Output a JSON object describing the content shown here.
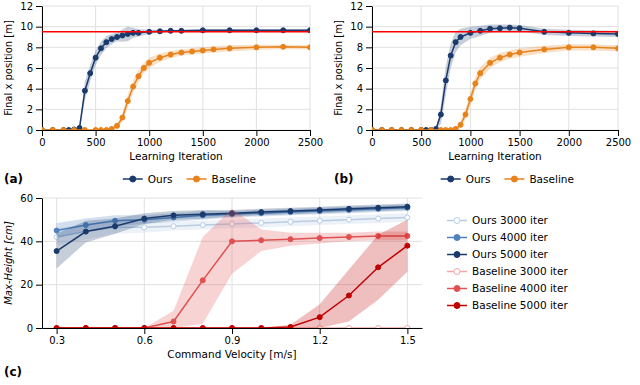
{
  "chart_data": [
    {
      "type": "line",
      "annotations": [
        "(a)"
      ],
      "xlabel": "Learning Iteration",
      "ylabel": "Final x position [m]",
      "xlim": [
        0,
        2500
      ],
      "xticks": [
        0,
        500,
        1000,
        1500,
        2000,
        2500
      ],
      "ylim": [
        0,
        12
      ],
      "yticks": [
        0,
        2,
        4,
        6,
        8,
        10,
        12
      ],
      "grid": true,
      "legend": "below",
      "ref_line": {
        "value": 9.5,
        "color": "red"
      },
      "series": [
        {
          "name": "Ours",
          "color": "#1a3a6b",
          "marker": "circle",
          "x": [
            0,
            100,
            200,
            250,
            300,
            350,
            400,
            450,
            500,
            550,
            600,
            650,
            700,
            750,
            800,
            850,
            900,
            1000,
            1100,
            1200,
            1300,
            1500,
            1750,
            2000,
            2250,
            2500
          ],
          "values": [
            0,
            0,
            0,
            0,
            0.05,
            0.2,
            3.8,
            5.5,
            7.0,
            7.9,
            8.5,
            8.8,
            9.0,
            9.15,
            9.3,
            9.4,
            9.4,
            9.5,
            9.55,
            9.6,
            9.6,
            9.65,
            9.65,
            9.65,
            9.65,
            9.65
          ],
          "std": [
            0,
            0,
            0,
            0,
            0.05,
            0.15,
            0.9,
            0.8,
            0.7,
            0.65,
            0.6,
            0.5,
            0.4,
            0.6,
            0.7,
            0.5,
            0.35,
            0.2,
            0.15,
            0.1,
            0.1,
            0.1,
            0.1,
            0.1,
            0.1,
            0.1
          ]
        },
        {
          "name": "Baseline",
          "color": "#e8821a",
          "marker": "circle",
          "x": [
            0,
            100,
            200,
            300,
            400,
            500,
            550,
            600,
            650,
            700,
            750,
            800,
            850,
            900,
            950,
            1000,
            1100,
            1200,
            1300,
            1400,
            1500,
            1600,
            1750,
            2000,
            2250,
            2500
          ],
          "values": [
            0,
            0,
            0,
            0,
            0,
            0,
            0,
            0,
            0.1,
            0.4,
            1.2,
            2.8,
            4.2,
            5.2,
            6.0,
            6.5,
            7.0,
            7.3,
            7.5,
            7.6,
            7.7,
            7.8,
            7.9,
            8.0,
            8.05,
            8.0
          ],
          "std": [
            0,
            0,
            0,
            0,
            0,
            0,
            0,
            0,
            0.1,
            0.2,
            0.4,
            0.6,
            0.6,
            0.6,
            0.5,
            0.5,
            0.4,
            0.35,
            0.3,
            0.3,
            0.3,
            0.3,
            0.3,
            0.25,
            0.2,
            0.2
          ]
        }
      ]
    },
    {
      "type": "line",
      "annotations": [
        "(b)"
      ],
      "xlabel": "Learning Iteration",
      "ylabel": "Final x position [m]",
      "xlim": [
        0,
        2500
      ],
      "xticks": [
        0,
        500,
        1000,
        1500,
        2000,
        2500
      ],
      "ylim": [
        0,
        12
      ],
      "yticks": [
        0,
        2,
        4,
        6,
        8,
        10,
        12
      ],
      "grid": true,
      "legend": "below",
      "ref_line": {
        "value": 9.5,
        "color": "red"
      },
      "series": [
        {
          "name": "Ours",
          "color": "#1a3a6b",
          "marker": "circle",
          "x": [
            0,
            100,
            200,
            300,
            400,
            500,
            550,
            600,
            650,
            700,
            750,
            800,
            850,
            900,
            1000,
            1100,
            1200,
            1300,
            1400,
            1500,
            1750,
            2000,
            2250,
            2500
          ],
          "values": [
            0,
            0,
            0,
            0,
            0,
            0,
            0,
            0,
            0.1,
            1.5,
            4.8,
            7.2,
            8.5,
            9.0,
            9.4,
            9.6,
            9.8,
            9.85,
            9.9,
            9.85,
            9.5,
            9.4,
            9.35,
            9.3
          ],
          "std": [
            0,
            0,
            0,
            0,
            0,
            0,
            0,
            0,
            0.1,
            0.9,
            1.4,
            1.2,
            1.0,
            0.8,
            0.6,
            0.5,
            0.4,
            0.35,
            0.3,
            0.3,
            0.3,
            0.3,
            0.3,
            0.3
          ]
        },
        {
          "name": "Baseline",
          "color": "#e8821a",
          "marker": "circle",
          "x": [
            0,
            100,
            200,
            300,
            400,
            500,
            600,
            700,
            750,
            800,
            850,
            900,
            950,
            1000,
            1050,
            1100,
            1200,
            1300,
            1400,
            1500,
            1750,
            2000,
            2250,
            2500
          ],
          "values": [
            0,
            0,
            0,
            0,
            0,
            0,
            0,
            0,
            0,
            0,
            0.1,
            0.5,
            1.5,
            3.0,
            4.5,
            5.5,
            6.5,
            7.0,
            7.3,
            7.5,
            7.8,
            8.0,
            8.0,
            7.9
          ],
          "std": [
            0,
            0,
            0,
            0,
            0,
            0,
            0,
            0,
            0,
            0,
            0.1,
            0.3,
            0.5,
            0.6,
            0.6,
            0.6,
            0.5,
            0.45,
            0.4,
            0.4,
            0.35,
            0.3,
            0.3,
            0.3
          ]
        }
      ]
    },
    {
      "type": "line",
      "annotations": [
        "(c)"
      ],
      "xlabel": "Command Velocity [m/s]",
      "ylabel": "Max-Height [cm]",
      "xlim": [
        0.25,
        1.55
      ],
      "xticks": [
        0.3,
        0.6,
        0.9,
        1.2,
        1.5
      ],
      "ylim": [
        0,
        60
      ],
      "yticks": [
        0,
        20,
        40,
        60
      ],
      "grid": true,
      "legend": "right",
      "x": [
        0.3,
        0.4,
        0.5,
        0.6,
        0.7,
        0.8,
        0.9,
        1.0,
        1.1,
        1.2,
        1.3,
        1.4,
        1.5
      ],
      "series": [
        {
          "name": "Ours 3000 iter",
          "color": "#b8cce4",
          "marker": "open-circle",
          "values": [
            42.0,
            44.5,
            46.5,
            46.5,
            47.0,
            47.5,
            48.0,
            48.5,
            49.0,
            49.5,
            50.0,
            50.5,
            51.0
          ],
          "std": [
            4.0,
            3.5,
            3.0,
            2.5,
            2.0,
            2.0,
            2.0,
            2.0,
            2.0,
            2.0,
            2.0,
            2.0,
            2.0
          ]
        },
        {
          "name": "Ours 4000 iter",
          "color": "#4f81bd",
          "marker": "circle",
          "values": [
            45.0,
            47.5,
            49.5,
            50.0,
            51.0,
            52.0,
            52.5,
            53.0,
            53.5,
            54.0,
            54.5,
            55.0,
            55.5
          ],
          "std": [
            3.5,
            3.0,
            2.5,
            2.0,
            2.0,
            2.0,
            1.5,
            1.5,
            1.5,
            1.5,
            1.5,
            1.5,
            1.5
          ]
        },
        {
          "name": "Ours 5000 iter",
          "color": "#1a3a6b",
          "marker": "circle",
          "values": [
            35.5,
            44.5,
            47.0,
            50.5,
            52.0,
            52.5,
            53.0,
            53.5,
            54.0,
            54.5,
            55.0,
            55.5,
            56.0
          ],
          "std": [
            8.0,
            5.0,
            3.5,
            2.5,
            2.0,
            2.0,
            1.5,
            1.5,
            1.5,
            1.5,
            1.5,
            1.5,
            1.5
          ]
        },
        {
          "name": "Baseline 3000 iter",
          "color": "#f4a6a6",
          "marker": "open-circle",
          "values": [
            0.0,
            0.0,
            0.0,
            0.0,
            0.0,
            0.0,
            0.0,
            0.0,
            0.0,
            0.0,
            0.0,
            0.0,
            0.0
          ],
          "band_lower": [
            0,
            0,
            0,
            0,
            0,
            0,
            0,
            0,
            0,
            0,
            0,
            0,
            0
          ],
          "band_upper": [
            0,
            0,
            0,
            0,
            0,
            0,
            0,
            0,
            0,
            0,
            0,
            0,
            0
          ]
        },
        {
          "name": "Baseline 4000 iter",
          "color": "#e05050",
          "marker": "circle",
          "values": [
            0.0,
            0.0,
            0.0,
            0.0,
            3.0,
            22.0,
            40.0,
            40.5,
            41.0,
            41.5,
            42.0,
            42.5,
            42.5
          ],
          "band_lower": [
            0,
            0,
            0,
            0,
            0,
            2,
            25,
            35.5,
            38,
            39,
            40,
            40.5,
            40.5
          ],
          "band_upper": [
            0,
            0,
            0,
            0,
            8,
            42,
            55,
            45.5,
            44,
            44,
            44,
            44.5,
            44.5
          ]
        },
        {
          "name": "Baseline 5000 iter",
          "color": "#c00000",
          "marker": "circle",
          "values": [
            0.0,
            0.0,
            0.0,
            0.0,
            0.0,
            0.0,
            0.0,
            0.0,
            0.5,
            5.0,
            15.0,
            28.0,
            38.0
          ],
          "band_lower": [
            0,
            0,
            0,
            0,
            0,
            0,
            0,
            0,
            0,
            0,
            3,
            13,
            26
          ],
          "band_upper": [
            0,
            0,
            0,
            0,
            0,
            0,
            0,
            0,
            1.5,
            11,
            27,
            43,
            50
          ]
        }
      ]
    }
  ]
}
